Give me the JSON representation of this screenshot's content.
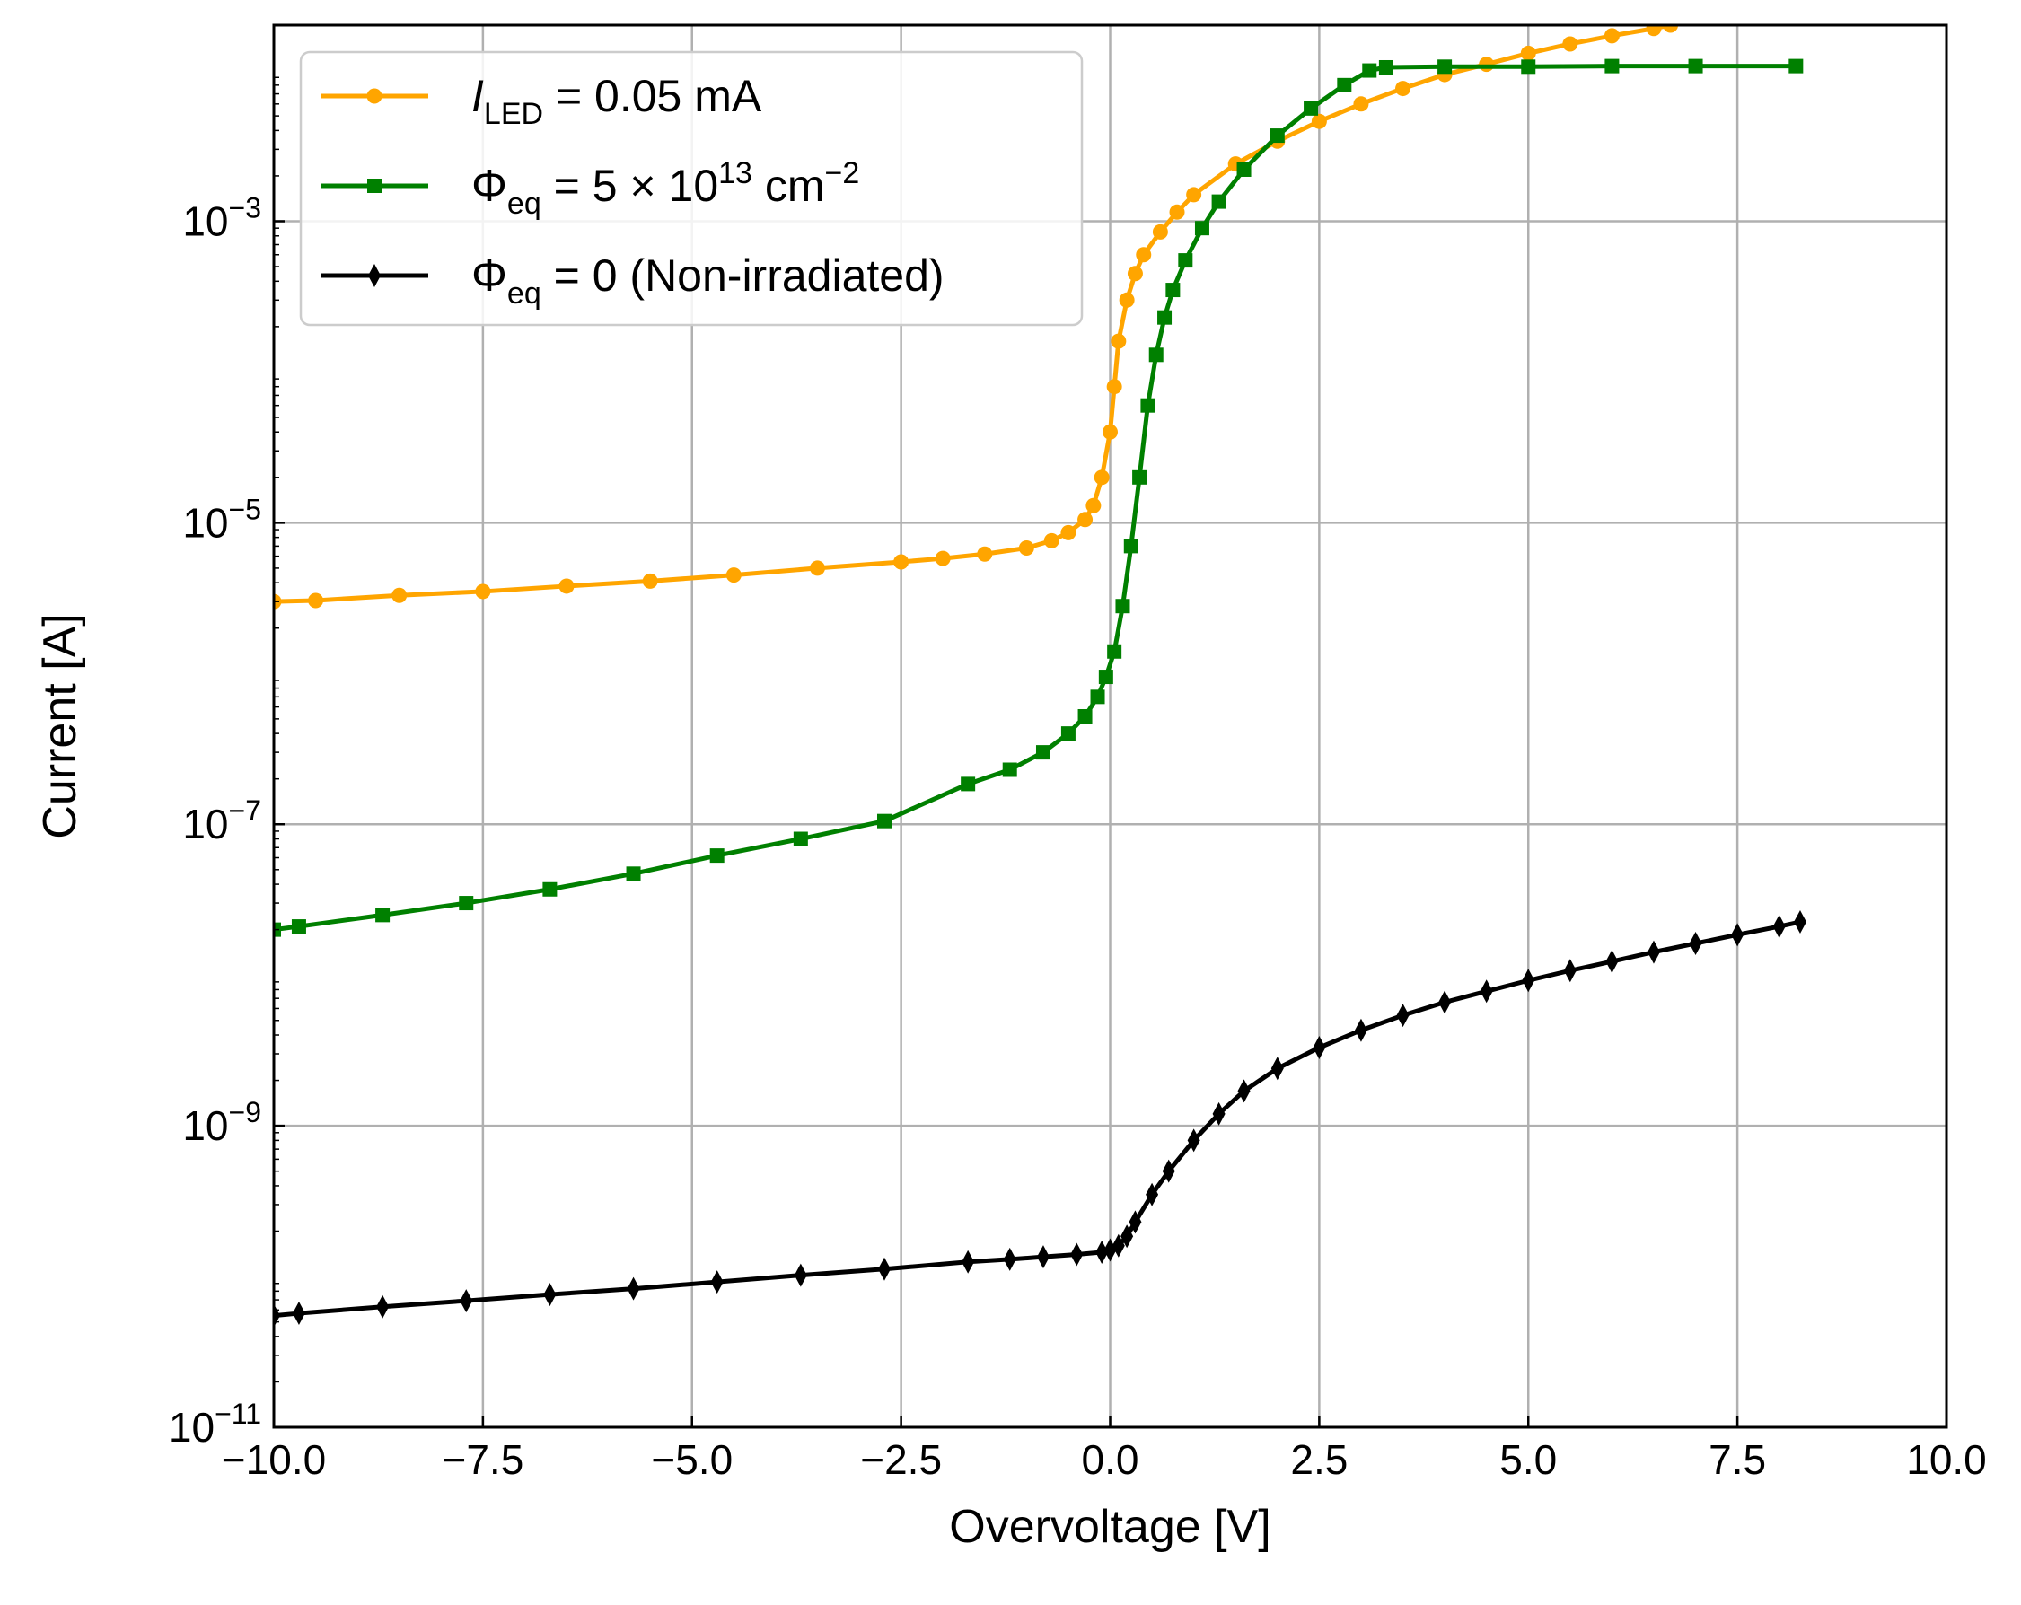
{
  "chart_data": {
    "type": "line",
    "xlabel": "Overvoltage [V]",
    "ylabel": "Current [A]",
    "xlim": [
      -10.0,
      10.0
    ],
    "ylim": [
      1e-11,
      0.02
    ],
    "yscale": "log",
    "grid": true,
    "legend_position": "top-left",
    "x_ticks": [
      -10.0,
      -7.5,
      -5.0,
      -2.5,
      0.0,
      2.5,
      5.0,
      7.5,
      10.0
    ],
    "x_tick_labels": [
      "−10.0",
      "−7.5",
      "−5.0",
      "−2.5",
      "0.0",
      "2.5",
      "5.0",
      "7.5",
      "10.0"
    ],
    "y_ticks": [
      {
        "value": 1e-11,
        "base": "10",
        "exp": "−11"
      },
      {
        "value": 1e-09,
        "base": "10",
        "exp": "−9"
      },
      {
        "value": 1e-07,
        "base": "10",
        "exp": "−7"
      },
      {
        "value": 1e-05,
        "base": "10",
        "exp": "−5"
      },
      {
        "value": 0.001,
        "base": "10",
        "exp": "−3"
      }
    ],
    "series": [
      {
        "name": "I_LED = 0.05 mA",
        "legend": {
          "main": "I",
          "sub": "LED",
          "rest": " = 0.05 mA"
        },
        "color": "#ffa500",
        "marker": "circle",
        "x": [
          -10.0,
          -9.5,
          -8.5,
          -7.5,
          -6.5,
          -5.5,
          -4.5,
          -3.5,
          -2.5,
          -2.0,
          -1.5,
          -1.0,
          -0.7,
          -0.5,
          -0.3,
          -0.2,
          -0.1,
          0.0,
          0.05,
          0.1,
          0.2,
          0.3,
          0.4,
          0.6,
          0.8,
          1.0,
          1.5,
          2.0,
          2.5,
          3.0,
          3.5,
          4.0,
          4.5,
          5.0,
          5.5,
          6.0,
          6.5,
          6.7
        ],
        "y": [
          3e-06,
          3.05e-06,
          3.3e-06,
          3.5e-06,
          3.8e-06,
          4.1e-06,
          4.5e-06,
          5e-06,
          5.5e-06,
          5.8e-06,
          6.2e-06,
          6.8e-06,
          7.6e-06,
          8.6e-06,
          1.05e-05,
          1.3e-05,
          2e-05,
          4e-05,
          8e-05,
          0.00016,
          0.0003,
          0.00045,
          0.0006,
          0.00085,
          0.00115,
          0.0015,
          0.0024,
          0.0034,
          0.0046,
          0.006,
          0.0076,
          0.0094,
          0.011,
          0.013,
          0.015,
          0.017,
          0.019,
          0.02
        ]
      },
      {
        "name": "Phi_eq = 5 x 10^13 cm^-2",
        "legend": {
          "main": "Φ",
          "sub": "eq",
          "rest": " = 5 × 10",
          "sup": "13",
          "rest2": " cm",
          "sup2": "−2"
        },
        "color": "#008000",
        "marker": "square",
        "x": [
          -10.0,
          -9.7,
          -8.7,
          -7.7,
          -6.7,
          -5.7,
          -4.7,
          -3.7,
          -2.7,
          -1.7,
          -1.2,
          -0.8,
          -0.5,
          -0.3,
          -0.15,
          -0.05,
          0.05,
          0.15,
          0.25,
          0.35,
          0.45,
          0.55,
          0.65,
          0.75,
          0.9,
          1.1,
          1.3,
          1.6,
          2.0,
          2.4,
          2.8,
          3.1,
          3.3,
          4.0,
          5.0,
          6.0,
          7.0,
          8.2
        ],
        "y": [
          2e-08,
          2.1e-08,
          2.5e-08,
          3e-08,
          3.7e-08,
          4.7e-08,
          6.2e-08,
          8e-08,
          1.05e-07,
          1.85e-07,
          2.3e-07,
          3e-07,
          4e-07,
          5.2e-07,
          7e-07,
          9.5e-07,
          1.4e-06,
          2.8e-06,
          7e-06,
          2e-05,
          6e-05,
          0.00013,
          0.00023,
          0.00035,
          0.00055,
          0.0009,
          0.00135,
          0.0022,
          0.0037,
          0.0056,
          0.008,
          0.01,
          0.0105,
          0.0106,
          0.0106,
          0.0107,
          0.0107,
          0.0107
        ]
      },
      {
        "name": "Phi_eq = 0 (Non-irradiated)",
        "legend": {
          "main": "Φ",
          "sub": "eq",
          "rest": " = 0 (Non-irradiated)"
        },
        "color": "#000000",
        "marker": "diamond",
        "x": [
          -10.0,
          -9.7,
          -8.7,
          -7.7,
          -6.7,
          -5.7,
          -4.7,
          -3.7,
          -2.7,
          -1.7,
          -1.2,
          -0.8,
          -0.4,
          -0.1,
          0.0,
          0.1,
          0.2,
          0.3,
          0.5,
          0.7,
          1.0,
          1.3,
          1.6,
          2.0,
          2.5,
          3.0,
          3.5,
          4.0,
          4.5,
          5.0,
          5.5,
          6.0,
          6.5,
          7.0,
          7.5,
          8.0,
          8.25
        ],
        "y": [
          5.5e-11,
          5.7e-11,
          6.3e-11,
          6.9e-11,
          7.6e-11,
          8.3e-11,
          9.2e-11,
          1.02e-10,
          1.12e-10,
          1.25e-10,
          1.3e-10,
          1.35e-10,
          1.4e-10,
          1.45e-10,
          1.5e-10,
          1.6e-10,
          1.85e-10,
          2.3e-10,
          3.5e-10,
          5e-10,
          8e-10,
          1.2e-09,
          1.7e-09,
          2.4e-09,
          3.3e-09,
          4.3e-09,
          5.4e-09,
          6.6e-09,
          7.8e-09,
          9.2e-09,
          1.07e-08,
          1.23e-08,
          1.42e-08,
          1.62e-08,
          1.85e-08,
          2.1e-08,
          2.25e-08
        ]
      }
    ]
  }
}
